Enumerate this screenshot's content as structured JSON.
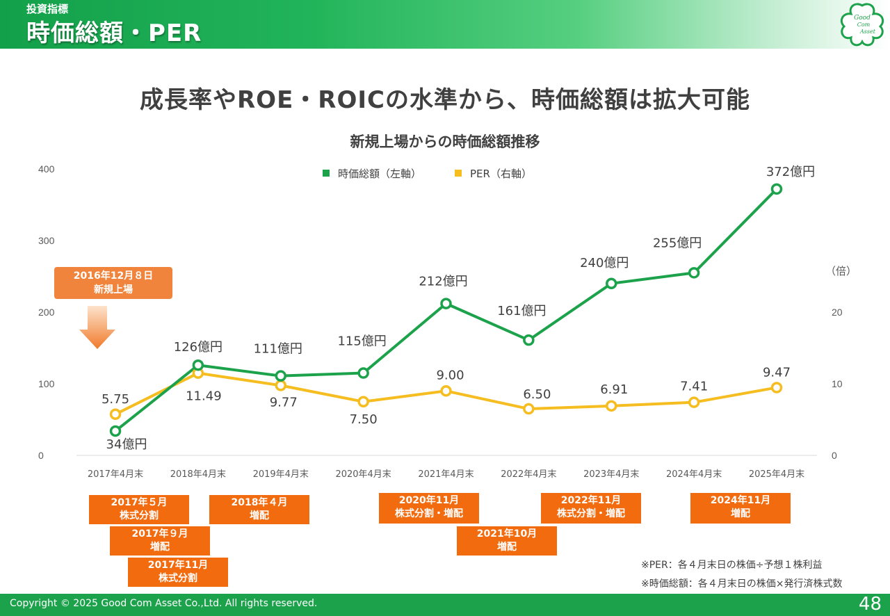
{
  "header": {
    "section": "投資指標",
    "title": "時価総額・PER"
  },
  "logo": {
    "line1": "Good",
    "line2": "Com",
    "line3": "Asset",
    "color": "#1da24c"
  },
  "headline": "成長率やROE・ROICの水準から、時価総額は拡大可能",
  "ipo": {
    "line1": "2016年12月８日",
    "line2": "新規上場"
  },
  "events": [
    {
      "line1": "2017年５月",
      "line2": "株式分割"
    },
    {
      "line1": "2017年９月",
      "line2": "増配"
    },
    {
      "line1": "2017年11月",
      "line2": "株式分割"
    },
    {
      "line1": "2018年４月",
      "line2": "増配"
    },
    {
      "line1": "2020年11月",
      "line2": "株式分割・増配"
    },
    {
      "line1": "2021年10月",
      "line2": "増配"
    },
    {
      "line1": "2022年11月",
      "line2": "株式分割・増配"
    },
    {
      "line1": "2024年11月",
      "line2": "増配"
    }
  ],
  "notes": [
    "※PER：各４月末日の株価÷予想１株利益",
    "※時価総額：各４月末日の株価×発行済株式数"
  ],
  "footer": {
    "copyright": "Copyright © 2025 Good Com Asset Co.,Ltd. All rights reserved.",
    "page": "48"
  },
  "chart_data": {
    "type": "line",
    "title": "新規上場からの時価総額推移",
    "categories": [
      "2017年4月末",
      "2018年4月末",
      "2019年4月末",
      "2020年4月末",
      "2021年4月末",
      "2022年4月末",
      "2023年4月末",
      "2024年4月末",
      "2025年4月末"
    ],
    "series": [
      {
        "name": "時価総額（左軸）",
        "axis": "left",
        "color": "#1da24c",
        "values": [
          34,
          126,
          111,
          115,
          212,
          161,
          240,
          255,
          372
        ],
        "labels": [
          "34億円",
          "126億円",
          "111億円",
          "115億円",
          "212億円",
          "161億円",
          "240億円",
          "255億円",
          "372億円"
        ]
      },
      {
        "name": "PER（右軸）",
        "axis": "right",
        "color": "#f5bd1f",
        "values": [
          5.75,
          11.49,
          9.77,
          7.5,
          9.0,
          6.5,
          6.91,
          7.41,
          9.47
        ],
        "labels": [
          "5.75",
          "11.49",
          "9.77",
          "7.50",
          "9.00",
          "6.50",
          "6.91",
          "7.41",
          "9.47"
        ]
      }
    ],
    "y_left": {
      "min": 0,
      "max": 400,
      "ticks": [
        "0",
        "100",
        "200",
        "300",
        "400"
      ]
    },
    "y_right": {
      "min": 0,
      "max": 40,
      "ticks": [
        "0",
        "10",
        "20"
      ],
      "unit": "（倍）"
    },
    "legend": "top-center",
    "grid": false
  }
}
